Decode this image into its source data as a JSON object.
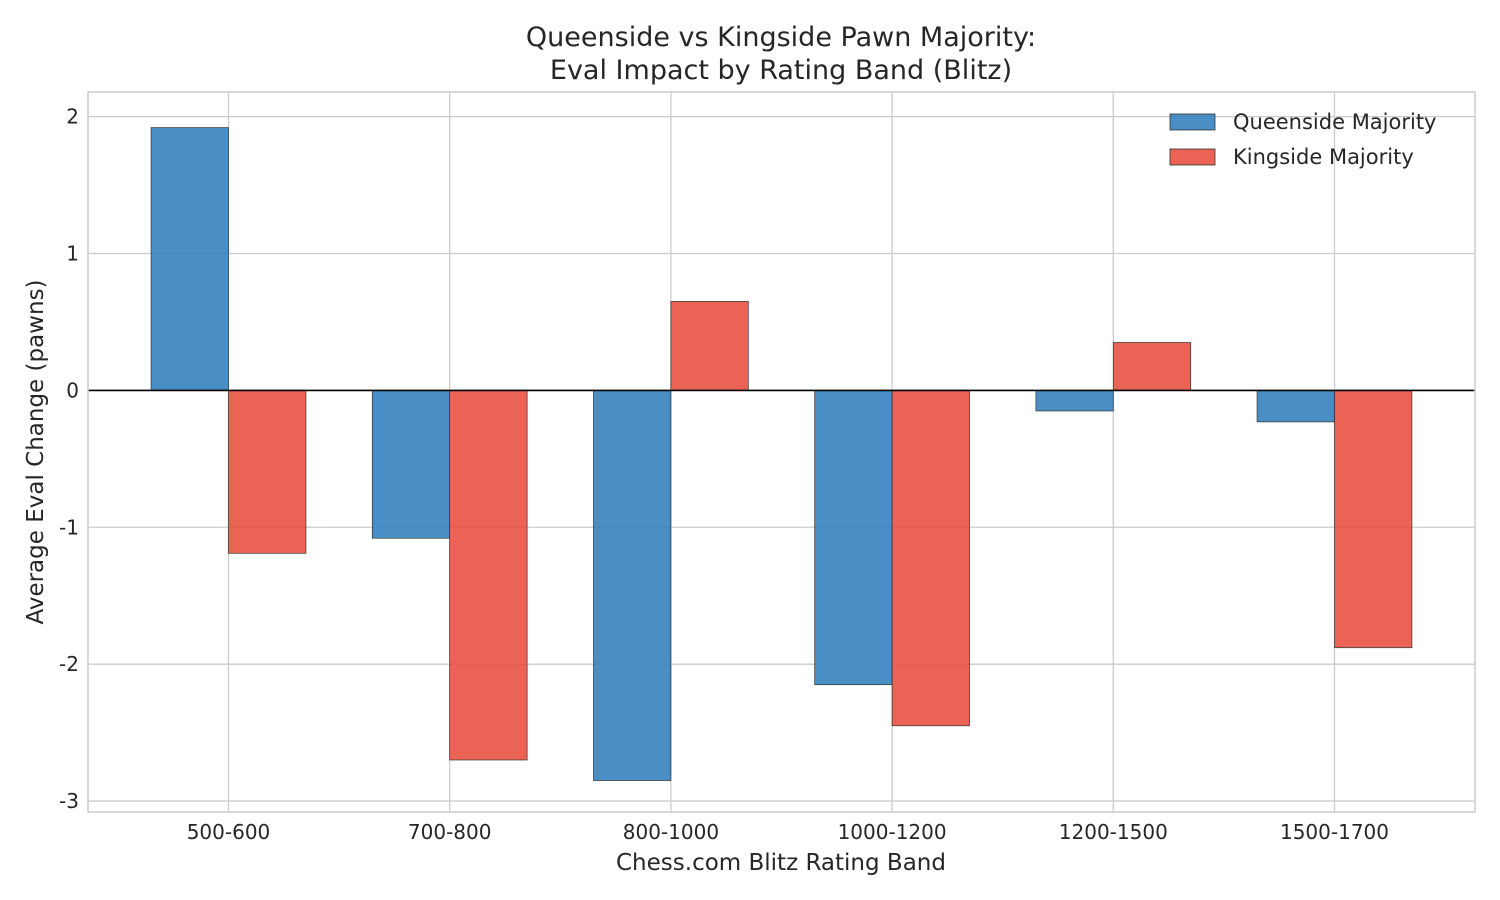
{
  "chart_data": {
    "type": "bar",
    "title_lines": [
      "Queenside vs Kingside Pawn Majority:",
      "Eval Impact by Rating Band (Blitz)"
    ],
    "xlabel": "Chess.com Blitz Rating Band",
    "ylabel": "Average Eval Change (pawns)",
    "categories": [
      "500-600",
      "700-800",
      "800-1000",
      "1000-1200",
      "1200-1500",
      "1500-1700"
    ],
    "series": [
      {
        "name": "Queenside Majority",
        "color": "#2e7ebc",
        "values": [
          1.92,
          -1.08,
          -2.85,
          -2.15,
          -0.15,
          -0.23
        ]
      },
      {
        "name": "Kingside Majority",
        "color": "#e74c3c",
        "values": [
          -1.19,
          -2.7,
          0.65,
          -2.45,
          0.35,
          -1.88
        ]
      }
    ],
    "ylim": [
      -3.08,
      2.18
    ],
    "yticks": [
      2,
      1,
      0,
      -1,
      -2,
      -3
    ],
    "ytick_labels": [
      "2",
      "1",
      "0",
      "-1",
      "-2",
      "-3"
    ],
    "grid": true,
    "legend_position": "top-right"
  }
}
